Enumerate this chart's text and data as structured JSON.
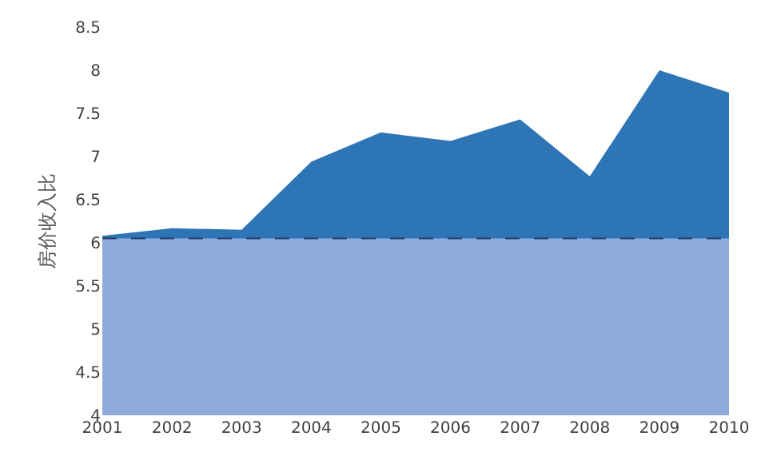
{
  "chart_data": {
    "type": "area",
    "ylabel": "房价收入比",
    "categories": [
      "2001",
      "2002",
      "2003",
      "2004",
      "2005",
      "2006",
      "2007",
      "2008",
      "2009",
      "2010"
    ],
    "series": [
      {
        "color": "#2e75b6",
        "values": [
          6.08,
          6.17,
          6.15,
          6.94,
          7.28,
          7.18,
          7.43,
          6.77,
          8.0,
          7.74
        ]
      },
      {
        "color": "#8faadc",
        "values": [
          6.05,
          6.05,
          6.05,
          6.05,
          6.05,
          6.05,
          6.05,
          6.05,
          6.05,
          6.05
        ],
        "line_style": "dashed"
      }
    ],
    "ylim": [
      4,
      8.5
    ],
    "yticks": [
      4,
      {
        "value": 4.5,
        "label": "4.5"
      },
      5,
      {
        "value": 5.5,
        "label": "5.5"
      },
      6,
      {
        "value": 6.5,
        "label": "6.5"
      },
      7,
      {
        "value": 7.5,
        "label": "7.5"
      },
      8,
      {
        "value": 8.5,
        "label": "8.5"
      }
    ]
  }
}
